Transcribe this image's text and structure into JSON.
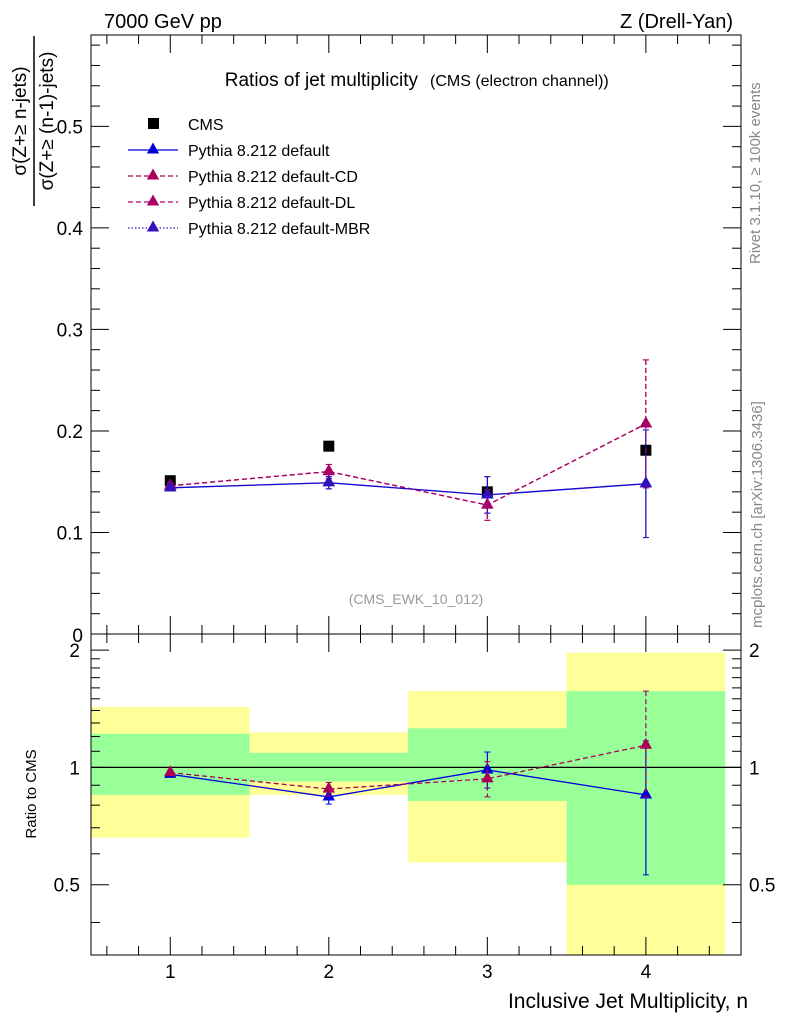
{
  "header": {
    "left": "7000 GeV pp",
    "right": "Z (Drell-Yan)"
  },
  "side": {
    "rivet": "Rivet 3.1.10, ≥ 100k events",
    "mcplots": "mcplots.cern.ch [arXiv:1306.3436]"
  },
  "chart_data": [
    {
      "type": "scatter",
      "title": "Ratios of jet multiplicity",
      "subtitle": "(CMS (electron channel))",
      "analysis_tag": "(CMS_EWK_10_012)",
      "ylabel_num": "σ(Z+≥ n-jets)",
      "ylabel_den": "σ(Z+≥ (n-1)-jets)",
      "xlim": [
        0.5,
        4.6
      ],
      "ylim": [
        0,
        0.59
      ],
      "yticks": [
        0.1,
        0.2,
        0.3,
        0.4,
        0.5
      ],
      "ytick_labels": [
        "0.1",
        "0.2",
        "0.3",
        "0.4",
        "0.5"
      ],
      "y_zero_label": "0",
      "x": [
        1,
        2,
        3,
        4
      ],
      "legend": [
        {
          "label": "CMS",
          "color": "#000000",
          "style": "marker-square"
        },
        {
          "label": "Pythia 8.212 default",
          "color": "#0000dd",
          "style": "solid-triangle"
        },
        {
          "label": "Pythia 8.212 default-CD",
          "color": "#aa0055",
          "style": "dashed-triangle"
        },
        {
          "label": "Pythia 8.212 default-DL",
          "color": "#aa0066",
          "style": "dashed-triangle"
        },
        {
          "label": "Pythia 8.212 default-MBR",
          "color": "#3311bb",
          "style": "dotted-triangle"
        }
      ],
      "series": [
        {
          "name": "CMS",
          "color": "#000000",
          "values": [
            0.151,
            0.185,
            0.14,
            0.181
          ],
          "err": [
            0,
            0,
            0,
            0
          ]
        },
        {
          "name": "Pythia 8.212 default",
          "color": "#0000dd",
          "values": [
            0.144,
            0.149,
            0.137,
            0.148
          ],
          "err": [
            0.003,
            0.006,
            0.018,
            0.053
          ]
        },
        {
          "name": "Pythia 8.212 default-CD",
          "color": "#aa0055",
          "values": [
            0.146,
            0.16,
            0.127,
            0.207
          ],
          "err": [
            0.003,
            0.007,
            0.015,
            0.063
          ]
        },
        {
          "name": "Pythia 8.212 default-DL",
          "color": "#aa0066",
          "values": [
            0.146,
            0.16,
            0.127,
            0.207
          ],
          "err": [
            0.003,
            0.007,
            0.015,
            0.063
          ]
        },
        {
          "name": "Pythia 8.212 default-MBR",
          "color": "#3311bb",
          "values": [
            0.144,
            0.149,
            0.137,
            0.148
          ],
          "err": [
            0.003,
            0.006,
            0.018,
            0.053
          ]
        }
      ]
    },
    {
      "type": "scatter",
      "ylabel": "Ratio to CMS",
      "xlabel": "Inclusive Jet Multiplicity, n",
      "xlim": [
        0.5,
        4.6
      ],
      "ylim": [
        0.33,
        2.2
      ],
      "log_y": true,
      "yticks": [
        0.5,
        1,
        2
      ],
      "ytick_labels": [
        "0.5",
        "1",
        "2"
      ],
      "xticks": [
        1,
        2,
        3,
        4
      ],
      "xtick_labels": [
        "1",
        "2",
        "3",
        "4"
      ],
      "reference_line": 1,
      "bands": [
        {
          "x_range": [
            0.5,
            1.5
          ],
          "green": [
            0.85,
            1.22
          ],
          "yellow": [
            0.66,
            1.43
          ]
        },
        {
          "x_range": [
            1.5,
            2.5
          ],
          "green": [
            0.92,
            1.09
          ],
          "yellow": [
            0.85,
            1.23
          ]
        },
        {
          "x_range": [
            2.5,
            3.5
          ],
          "green": [
            0.82,
            1.26
          ],
          "yellow": [
            0.57,
            1.57
          ]
        },
        {
          "x_range": [
            3.5,
            4.5
          ],
          "green": [
            0.5,
            1.57
          ],
          "yellow": [
            0.33,
            1.97
          ]
        }
      ],
      "band_colors": {
        "green": "#99ff99",
        "yellow": "#ffff99"
      },
      "series": [
        {
          "name": "Pythia 8.212 default",
          "color": "#0000dd",
          "values": [
            0.96,
            0.84,
            0.985,
            0.85
          ],
          "err_low": [
            0.015,
            0.035,
            0.1,
            0.32
          ],
          "err_high": [
            0.015,
            0.035,
            0.11,
            0.32
          ]
        },
        {
          "name": "Pythia 8.212 default-CD",
          "color": "#aa0055",
          "values": [
            0.97,
            0.88,
            0.935,
            1.14
          ],
          "err_low": [
            0.015,
            0.035,
            0.095,
            0.3
          ],
          "err_high": [
            0.015,
            0.035,
            0.1,
            0.43
          ]
        }
      ]
    }
  ]
}
